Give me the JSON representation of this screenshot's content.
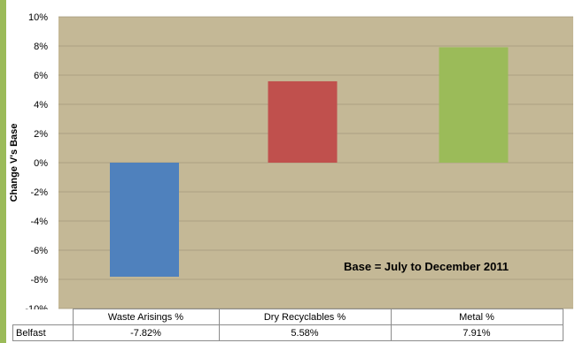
{
  "colors": {
    "plot_background": "#c4b896",
    "gridline": "#a39a7c",
    "accent_bar": "#9bbb59"
  },
  "chart_data": {
    "type": "bar",
    "categories": [
      "Waste Arisings %",
      "Dry Recyclables %",
      "Metal %"
    ],
    "series": [
      {
        "name": "Belfast",
        "values": [
          -7.82,
          5.58,
          7.91
        ],
        "colors": [
          "#4f81bd",
          "#c0504d",
          "#9bbb59"
        ]
      }
    ],
    "ylabel": "Change V's Base",
    "xlabel": "",
    "ylim": [
      -10,
      10
    ],
    "yticks": [
      -10,
      -8,
      -6,
      -4,
      -2,
      0,
      2,
      4,
      6,
      8,
      10
    ],
    "ytick_suffix": "%",
    "grid": true,
    "annotation": "Base = July to December 2011",
    "data_table": {
      "row_label": "Belfast",
      "values": [
        "-7.82%",
        "5.58%",
        "7.91%"
      ]
    }
  }
}
